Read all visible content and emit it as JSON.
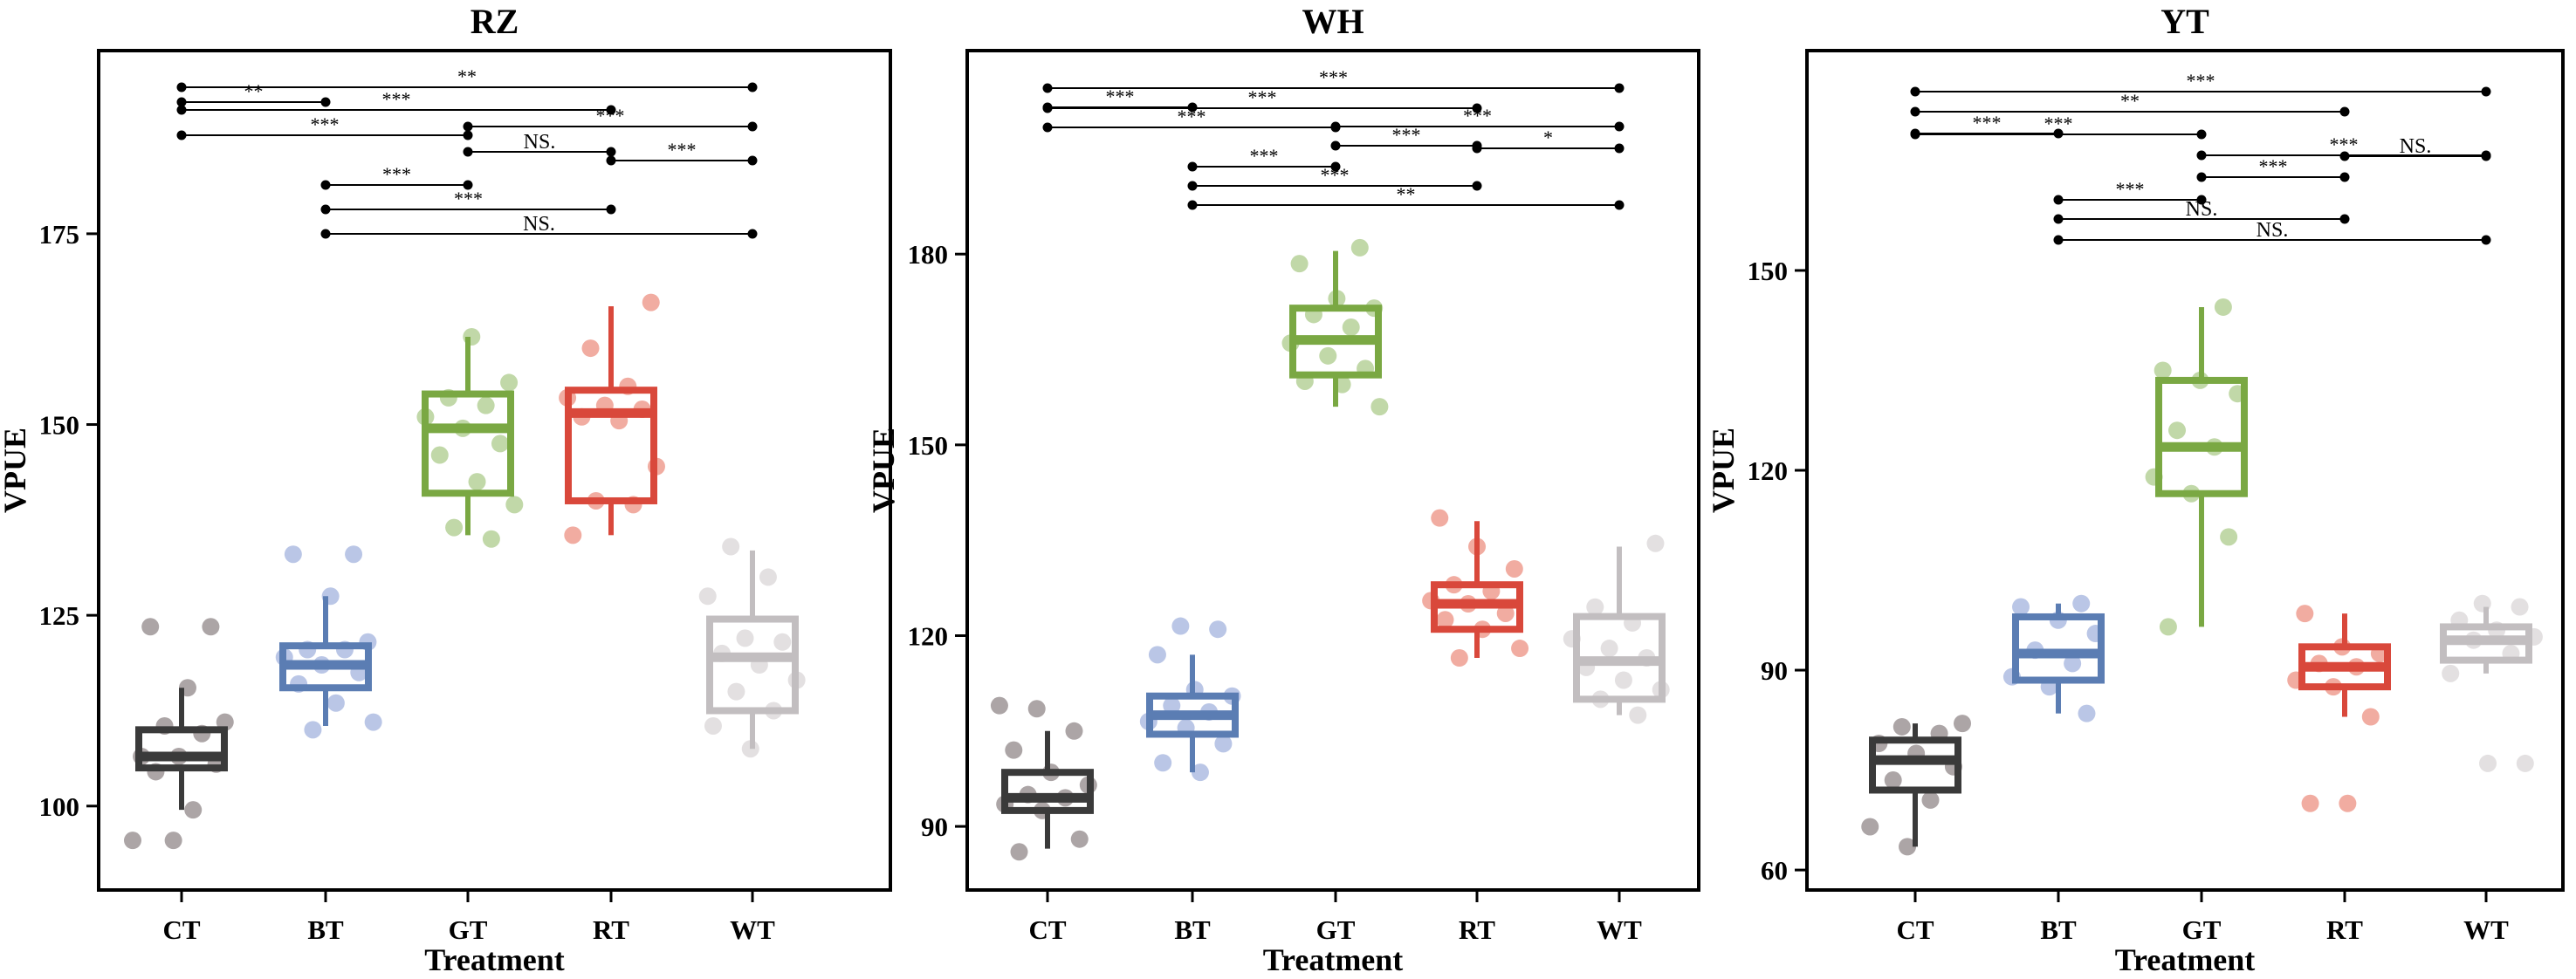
{
  "chart_data": [
    {
      "type": "boxplot",
      "title": "RZ",
      "xlabel": "Treatment",
      "ylabel": "VPUE",
      "ylim": [
        89,
        199
      ],
      "yticks": [
        "100",
        "125",
        "150",
        "175"
      ],
      "ytick_values": [
        100,
        125,
        150,
        175
      ],
      "categories": [
        "CT",
        "BT",
        "GT",
        "RT",
        "WT"
      ],
      "boxes": [
        {
          "name": "CT",
          "q1": 105,
          "median": 106.5,
          "q3": 110,
          "whisker_low": 99.5,
          "whisker_high": 115.5
        },
        {
          "name": "BT",
          "q1": 115.5,
          "median": 118.5,
          "q3": 121,
          "whisker_low": 110.5,
          "whisker_high": 127.5
        },
        {
          "name": "GT",
          "q1": 141,
          "median": 149.5,
          "q3": 154,
          "whisker_low": 135.5,
          "whisker_high": 161.5
        },
        {
          "name": "RT",
          "q1": 140,
          "median": 151.5,
          "q3": 154.5,
          "whisker_low": 135.5,
          "whisker_high": 165.5
        },
        {
          "name": "WT",
          "q1": 112.5,
          "median": 119.5,
          "q3": 124.5,
          "whisker_low": 107.5,
          "whisker_high": 133.5
        }
      ],
      "points": [
        [
          95.5,
          99.5,
          104.5,
          105.5,
          106.5,
          106.5,
          109.5,
          110.5,
          111,
          115.5,
          123.5,
          123.5,
          95.5
        ],
        [
          110,
          111,
          113.5,
          116,
          117.5,
          118.5,
          119.5,
          120.5,
          120.5,
          121.5,
          127.5,
          133,
          133
        ],
        [
          135,
          136.5,
          139.5,
          142.5,
          146,
          147.5,
          149.5,
          151,
          152.5,
          153.5,
          155.5,
          161.5
        ],
        [
          135.5,
          139.5,
          140,
          144.5,
          150.5,
          151,
          152,
          152.5,
          153.5,
          155,
          160,
          166
        ],
        [
          107.5,
          110.5,
          112.5,
          115,
          116.5,
          118.5,
          120,
          121.5,
          122,
          127.5,
          130,
          134
        ]
      ],
      "significance": [
        {
          "from": "CT",
          "to": "WT",
          "label": "**"
        },
        {
          "from": "CT",
          "to": "RT",
          "label": "***"
        },
        {
          "from": "CT",
          "to": "GT",
          "label": "***"
        },
        {
          "from": "RT",
          "to": "WT",
          "label": "***"
        },
        {
          "from": "CT",
          "to": "BT",
          "label": "**"
        },
        {
          "from": "GT",
          "to": "WT",
          "label": "***"
        },
        {
          "from": "GT",
          "to": "RT",
          "label": "NS."
        },
        {
          "from": "BT",
          "to": "GT",
          "label": "***"
        },
        {
          "from": "BT",
          "to": "RT",
          "label": "***"
        },
        {
          "from": "BT",
          "to": "WT",
          "label": "NS."
        }
      ]
    },
    {
      "type": "boxplot",
      "title": "WH",
      "xlabel": "Treatment",
      "ylabel": "VPUE",
      "ylim": [
        80,
        212
      ],
      "yticks": [
        "90",
        "120",
        "150",
        "180"
      ],
      "ytick_values": [
        90,
        120,
        150,
        180
      ],
      "categories": [
        "CT",
        "BT",
        "GT",
        "RT",
        "WT"
      ],
      "boxes": [
        {
          "name": "CT",
          "q1": 92.5,
          "median": 94.5,
          "q3": 98.5,
          "whisker_low": 86.5,
          "whisker_high": 105
        },
        {
          "name": "BT",
          "q1": 104.5,
          "median": 107.5,
          "q3": 110.5,
          "whisker_low": 98.5,
          "whisker_high": 117
        },
        {
          "name": "GT",
          "q1": 161,
          "median": 166.5,
          "q3": 171.5,
          "whisker_low": 156,
          "whisker_high": 180.5
        },
        {
          "name": "RT",
          "q1": 121,
          "median": 125,
          "q3": 128,
          "whisker_low": 116.5,
          "whisker_high": 138
        },
        {
          "name": "WT",
          "q1": 110,
          "median": 116,
          "q3": 123,
          "whisker_low": 107.5,
          "whisker_high": 134
        }
      ],
      "points": [
        [
          86,
          88,
          92.5,
          93.5,
          94.5,
          95,
          96.5,
          98.5,
          102,
          105,
          108.5,
          109
        ],
        [
          98.5,
          100,
          103,
          105.5,
          106.5,
          108,
          109,
          110.5,
          111.5,
          117,
          121,
          121.5
        ],
        [
          156,
          159.5,
          160,
          162,
          164,
          166,
          168.5,
          170.5,
          171.5,
          173,
          178.5,
          181
        ],
        [
          116.5,
          118,
          121,
          122.5,
          123.5,
          125,
          125.5,
          127,
          128,
          130.5,
          134,
          138.5
        ],
        [
          107.5,
          110,
          111.5,
          113,
          115,
          116.5,
          118,
          119.5,
          122,
          124.5,
          134.5
        ]
      ],
      "significance": [
        {
          "from": "CT",
          "to": "WT",
          "label": "***"
        },
        {
          "from": "CT",
          "to": "RT",
          "label": "***"
        },
        {
          "from": "CT",
          "to": "GT",
          "label": "***"
        },
        {
          "from": "RT",
          "to": "WT",
          "label": "*"
        },
        {
          "from": "CT",
          "to": "BT",
          "label": "***"
        },
        {
          "from": "GT",
          "to": "WT",
          "label": "***"
        },
        {
          "from": "GT",
          "to": "RT",
          "label": "***"
        },
        {
          "from": "BT",
          "to": "GT",
          "label": "***"
        },
        {
          "from": "BT",
          "to": "RT",
          "label": "***"
        },
        {
          "from": "BT",
          "to": "WT",
          "label": "**"
        }
      ]
    },
    {
      "type": "boxplot",
      "title": "YT",
      "xlabel": "Treatment",
      "ylabel": "VPUE",
      "ylim": [
        57,
        183
      ],
      "yticks": [
        "60",
        "90",
        "120",
        "150"
      ],
      "ytick_values": [
        60,
        90,
        120,
        150
      ],
      "categories": [
        "CT",
        "BT",
        "GT",
        "RT",
        "WT"
      ],
      "boxes": [
        {
          "name": "CT",
          "q1": 72,
          "median": 76.5,
          "q3": 79.5,
          "whisker_low": 63.5,
          "whisker_high": 82
        },
        {
          "name": "BT",
          "q1": 88.5,
          "median": 92.5,
          "q3": 98,
          "whisker_low": 83.5,
          "whisker_high": 100
        },
        {
          "name": "GT",
          "q1": 116.5,
          "median": 123.5,
          "q3": 133.5,
          "whisker_low": 96.5,
          "whisker_high": 144.5
        },
        {
          "name": "RT",
          "q1": 87.5,
          "median": 90.5,
          "q3": 93.5,
          "whisker_low": 83,
          "whisker_high": 98.5
        },
        {
          "name": "WT",
          "q1": 91.5,
          "median": 94.5,
          "q3": 96.5,
          "whisker_low": 89.5,
          "whisker_high": 99.5
        }
      ],
      "points": [
        [
          63.5,
          66.5,
          70.5,
          73.5,
          75.5,
          77.5,
          79,
          80.5,
          81.5,
          82
        ],
        [
          83.5,
          87.5,
          89,
          91,
          93,
          95.5,
          97.5,
          99.5,
          100
        ],
        [
          96.5,
          110,
          116.5,
          119,
          123.5,
          126,
          131.5,
          133.5,
          135,
          144.5
        ],
        [
          70,
          70,
          83,
          87.5,
          88.5,
          90.5,
          91,
          92.5,
          93.5,
          98.5
        ],
        [
          76,
          76,
          89.5,
          92.5,
          94.5,
          95,
          96,
          97.5,
          99.5,
          100
        ]
      ],
      "significance": [
        {
          "from": "CT",
          "to": "WT",
          "label": "***"
        },
        {
          "from": "CT",
          "to": "RT",
          "label": "**"
        },
        {
          "from": "CT",
          "to": "GT",
          "label": "***"
        },
        {
          "from": "RT",
          "to": "WT",
          "label": "NS."
        },
        {
          "from": "CT",
          "to": "BT",
          "label": "***"
        },
        {
          "from": "GT",
          "to": "WT",
          "label": "***"
        },
        {
          "from": "GT",
          "to": "RT",
          "label": "***"
        },
        {
          "from": "BT",
          "to": "GT",
          "label": "***"
        },
        {
          "from": "BT",
          "to": "RT",
          "label": "NS."
        },
        {
          "from": "BT",
          "to": "WT",
          "label": "NS."
        }
      ]
    }
  ],
  "colors": {
    "CT": "#3a3a3a",
    "BT": "#5b7db3",
    "GT": "#7aa843",
    "RT": "#d9483b",
    "WT": "#c2bec0",
    "axis": "#000000"
  },
  "point_colors": {
    "CT": "#8c8284",
    "BT": "#9fb0dd",
    "GT": "#a9c987",
    "RT": "#ec8c7d",
    "WT": "#d8d4d6"
  }
}
